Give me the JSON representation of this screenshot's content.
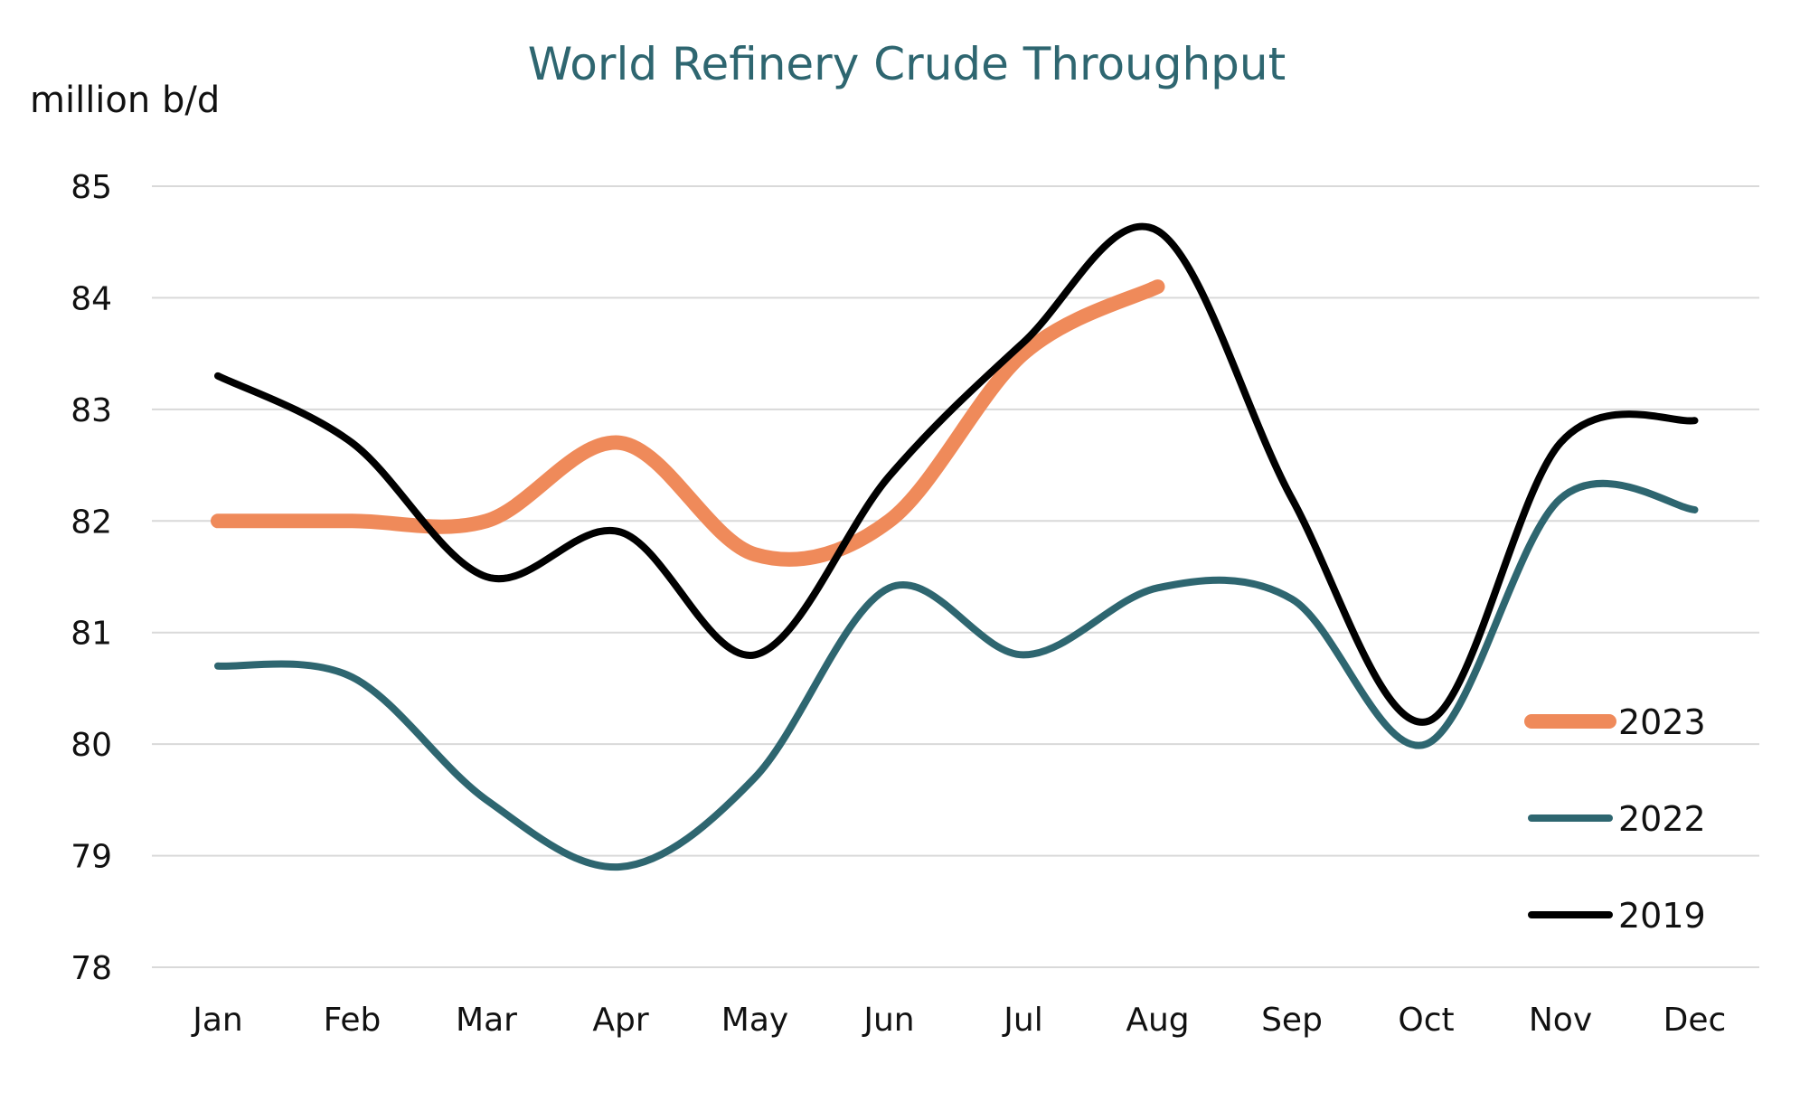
{
  "chart_data": {
    "type": "line",
    "title": "World Refinery Crude Throughput",
    "ylabel": "million b/d",
    "xlabel": "",
    "categories": [
      "Jan",
      "Feb",
      "Mar",
      "Apr",
      "May",
      "Jun",
      "Jul",
      "Aug",
      "Sep",
      "Oct",
      "Nov",
      "Dec"
    ],
    "ylim": [
      78,
      85
    ],
    "yticks": [
      78,
      79,
      80,
      81,
      82,
      83,
      84,
      85
    ],
    "grid": true,
    "legend_position": "bottom-right",
    "title_color": "#2e6670",
    "series": [
      {
        "name": "2023",
        "color": "#ef8a5a",
        "values": [
          82.0,
          82.0,
          82.0,
          82.7,
          81.7,
          82.0,
          83.5,
          84.1,
          null,
          null,
          null,
          null
        ]
      },
      {
        "name": "2022",
        "color": "#2e6670",
        "values": [
          80.7,
          80.6,
          79.5,
          78.9,
          79.7,
          81.4,
          80.8,
          81.4,
          81.3,
          80.0,
          82.2,
          82.1
        ]
      },
      {
        "name": "2019",
        "color": "#000000",
        "values": [
          83.3,
          82.7,
          81.5,
          81.9,
          80.8,
          82.4,
          83.6,
          84.6,
          82.2,
          80.2,
          82.7,
          82.9
        ]
      }
    ],
    "legend_order": [
      "2023",
      "2022",
      "2019"
    ]
  }
}
